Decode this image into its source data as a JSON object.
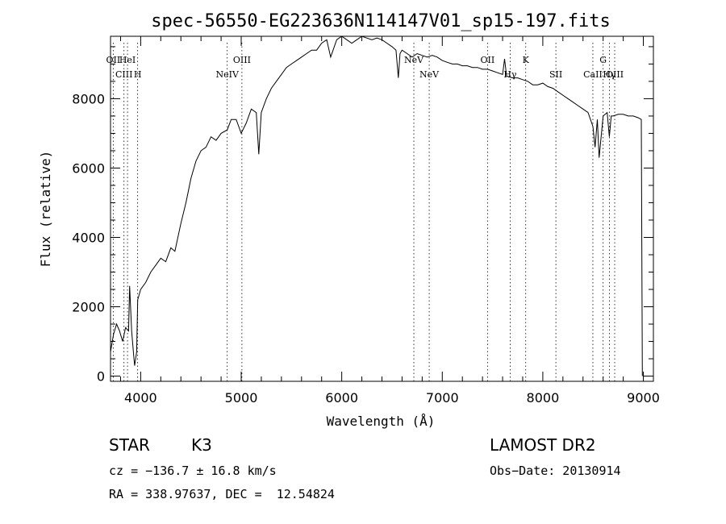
{
  "chart_data": {
    "type": "line",
    "title": "spec-56550-EG223636N114147V01_sp15-197.fits",
    "xlabel": "Wavelength (Å)",
    "ylabel": "Flux (relative)",
    "xlim": [
      3700,
      9100
    ],
    "ylim": [
      -150,
      9800
    ],
    "x_ticks": [
      4000,
      5000,
      6000,
      7000,
      8000,
      9000
    ],
    "y_ticks": [
      0,
      2000,
      4000,
      6000,
      8000
    ],
    "series": [
      {
        "x": [
          3700,
          3730,
          3760,
          3790,
          3820,
          3850,
          3880,
          3890,
          3910,
          3930,
          3940,
          3960,
          3970,
          4000,
          4050,
          4100,
          4150,
          4200,
          4250,
          4300,
          4340,
          4400,
          4450,
          4500,
          4550,
          4600,
          4650,
          4700,
          4750,
          4800,
          4861,
          4900,
          4950,
          5000,
          5050,
          5100,
          5150,
          5175,
          5200,
          5250,
          5300,
          5350,
          5400,
          5450,
          5500,
          5550,
          5600,
          5650,
          5700,
          5750,
          5800,
          5850,
          5890,
          5950,
          6000,
          6050,
          6100,
          6150,
          6200,
          6250,
          6300,
          6350,
          6400,
          6450,
          6500,
          6540,
          6563,
          6580,
          6600,
          6650,
          6700,
          6750,
          6800,
          6850,
          6900,
          6950,
          7000,
          7050,
          7100,
          7150,
          7200,
          7250,
          7300,
          7350,
          7400,
          7450,
          7500,
          7550,
          7600,
          7620,
          7640,
          7700,
          7750,
          7800,
          7850,
          7900,
          7950,
          8000,
          8050,
          8100,
          8150,
          8200,
          8250,
          8300,
          8350,
          8400,
          8450,
          8498,
          8520,
          8542,
          8560,
          8600,
          8640,
          8662,
          8680,
          8700,
          8750,
          8800,
          8850,
          8900,
          8950,
          8980,
          8990
        ],
        "y": [
          700,
          1200,
          1500,
          1300,
          1000,
          1400,
          1300,
          2600,
          1300,
          600,
          300,
          700,
          2200,
          2500,
          2700,
          3000,
          3200,
          3400,
          3300,
          3700,
          3600,
          4400,
          5000,
          5700,
          6200,
          6500,
          6600,
          6900,
          6800,
          7000,
          7100,
          7400,
          7400,
          7000,
          7300,
          7700,
          7600,
          6400,
          7600,
          8000,
          8300,
          8500,
          8700,
          8900,
          9000,
          9100,
          9200,
          9300,
          9400,
          9400,
          9600,
          9700,
          9200,
          9700,
          9800,
          9700,
          9600,
          9700,
          9800,
          9750,
          9700,
          9750,
          9700,
          9600,
          9500,
          9400,
          8600,
          9300,
          9400,
          9300,
          9200,
          9300,
          9250,
          9200,
          9250,
          9200,
          9100,
          9050,
          9000,
          9000,
          8950,
          8950,
          8900,
          8900,
          8850,
          8850,
          8800,
          8750,
          8700,
          9150,
          8650,
          8600,
          8600,
          8550,
          8500,
          8400,
          8400,
          8450,
          8350,
          8300,
          8200,
          8100,
          8000,
          7900,
          7800,
          7700,
          7600,
          7200,
          6600,
          7400,
          6300,
          7500,
          7600,
          6900,
          7500,
          7500,
          7550,
          7550,
          7500,
          7500,
          7450,
          7400,
          0
        ]
      }
    ],
    "line_markers": [
      {
        "wave": 3727,
        "label": "OII",
        "row": 0
      },
      {
        "wave": 3869,
        "label": "HeI",
        "row": 0
      },
      {
        "wave": 3834,
        "label": "CIII",
        "row": 1
      },
      {
        "wave": 3970,
        "label": "H",
        "row": 1
      },
      {
        "wave": 5007,
        "label": "OIII",
        "row": 0
      },
      {
        "wave": 4861,
        "label": "NeIV",
        "row": 1
      },
      {
        "wave": 6717,
        "label": "NeV",
        "row": 0
      },
      {
        "wave": 6870,
        "label": "NeV",
        "row": 1
      },
      {
        "wave": 7450,
        "label": "OII",
        "row": 0
      },
      {
        "wave": 7675,
        "label": "Hγ",
        "row": 1
      },
      {
        "wave": 7830,
        "label": "K",
        "row": 0
      },
      {
        "wave": 8130,
        "label": "SII",
        "row": 1
      },
      {
        "wave": 8600,
        "label": "G",
        "row": 0
      },
      {
        "wave": 8498,
        "label": "CaII",
        "row": 1
      },
      {
        "wave": 8662,
        "label": "Hγ",
        "row": 1
      },
      {
        "wave": 8715,
        "label": "OIII",
        "row": 1
      }
    ]
  },
  "info": {
    "object_class": "STAR",
    "subclass": "K3",
    "survey": "LAMOST DR2",
    "cz": "cz = −136.7 ± 16.8 km/s",
    "obs_date": "Obs−Date: 20130914",
    "coords": "RA = 338.97637, DEC =  12.54824"
  }
}
